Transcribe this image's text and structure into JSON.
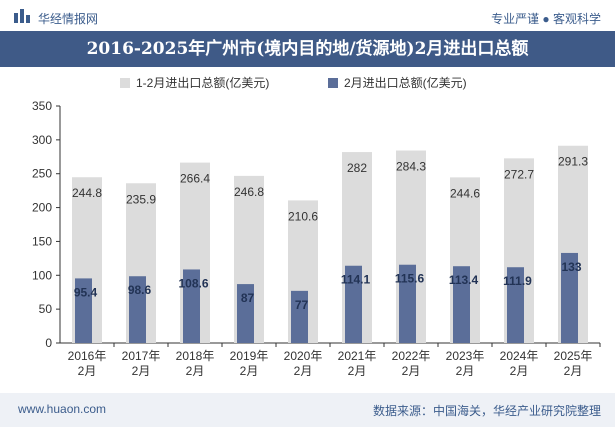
{
  "header": {
    "brand": "华经情报网",
    "slogan": "专业严谨 ● 客观科学"
  },
  "footer": {
    "site": "www.huaon.com",
    "source": "数据来源：中国海关，华经产业研究院整理"
  },
  "colors": {
    "series1": "#dcdcdc",
    "series2": "#5b6e99",
    "title_bg": "#3f5a87",
    "brand": "#3b5c8c"
  },
  "chart_data": {
    "type": "bar",
    "title": "2016-2025年广州市(境内目的地/货源地)2月进出口总额",
    "categories": [
      "2016年\n2月",
      "2017年\n2月",
      "2018年\n2月",
      "2019年\n2月",
      "2020年\n2月",
      "2021年\n2月",
      "2022年\n2月",
      "2023年\n2月",
      "2024年\n2月",
      "2025年\n2月"
    ],
    "series": [
      {
        "name": "1-2月进出口总额(亿美元)",
        "values": [
          244.8,
          235.9,
          266.4,
          246.8,
          210.6,
          282,
          284.3,
          244.6,
          272.7,
          291.3
        ]
      },
      {
        "name": "2月进出口总额(亿美元)",
        "values": [
          95.4,
          98.6,
          108.6,
          87,
          77,
          114.1,
          115.6,
          113.4,
          111.9,
          133
        ]
      }
    ],
    "ylim": [
      0,
      350
    ],
    "yticks": [
      0,
      50,
      100,
      150,
      200,
      250,
      300,
      350
    ],
    "legend_position": "top",
    "grid": false
  }
}
